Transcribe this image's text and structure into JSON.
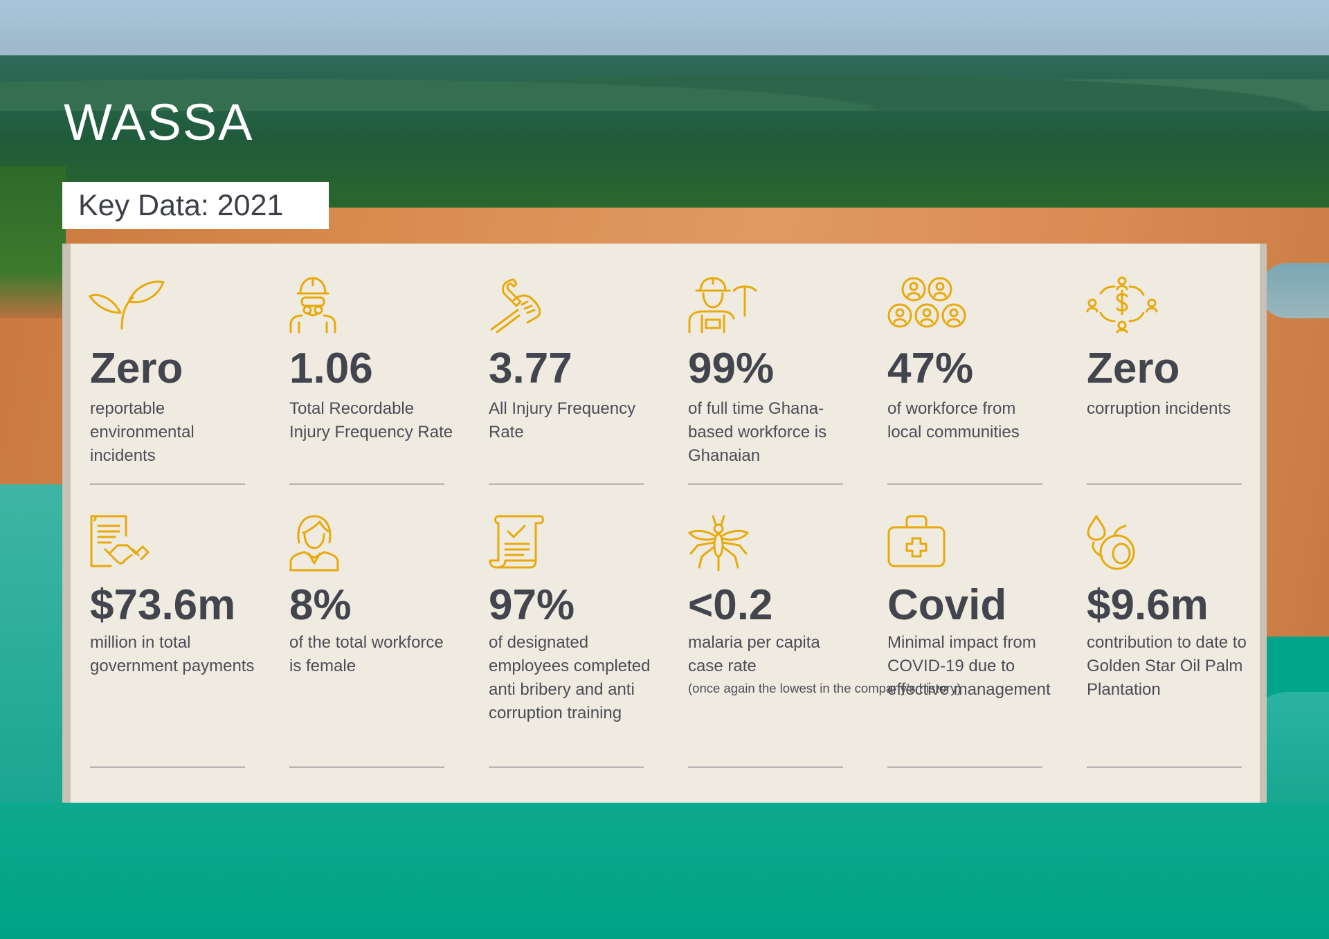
{
  "page": {
    "title": "WASSA",
    "subtitle": "Key Data: 2021",
    "accent_color": "#e8a90c",
    "text_color": "#42454d",
    "panel_color": "#f0ebe1"
  },
  "stats": [
    {
      "icon": "leaf-sprout-icon",
      "value": "Zero",
      "description": "reportable environmental incidents"
    },
    {
      "icon": "worker-with-mask-icon",
      "value": "1.06",
      "description": "Total Recordable Injury Frequency Rate"
    },
    {
      "icon": "wrench-hand-icon",
      "value": "3.77",
      "description": "All Injury Frequency Rate"
    },
    {
      "icon": "miner-with-pickaxe-icon",
      "value": "99%",
      "description": "of full time Ghana-based workforce is Ghanaian"
    },
    {
      "icon": "community-people-icon",
      "value": "47%",
      "description": "of workforce from local communities"
    },
    {
      "icon": "money-people-cycle-icon",
      "value": "Zero",
      "description": "corruption incidents"
    },
    {
      "icon": "contract-handshake-icon",
      "value": "$73.6m",
      "description": "million in total government payments"
    },
    {
      "icon": "female-worker-icon",
      "value": "8%",
      "description": "of the total workforce is female"
    },
    {
      "icon": "checked-document-icon",
      "value": "97%",
      "description": "of designated employees completed anti bribery and anti corruption training"
    },
    {
      "icon": "mosquito-icon",
      "value": "<0.2",
      "description": "malaria per capita case rate",
      "note": "(once again the lowest in the company’s history)"
    },
    {
      "icon": "first-aid-kit-icon",
      "value": "Covid",
      "description": "Minimal impact from COVID-19 due to effective management"
    },
    {
      "icon": "oil-palm-fruit-icon",
      "value": "$9.6m",
      "description": "contribution to date to Golden Star Oil Palm Plantation"
    }
  ]
}
